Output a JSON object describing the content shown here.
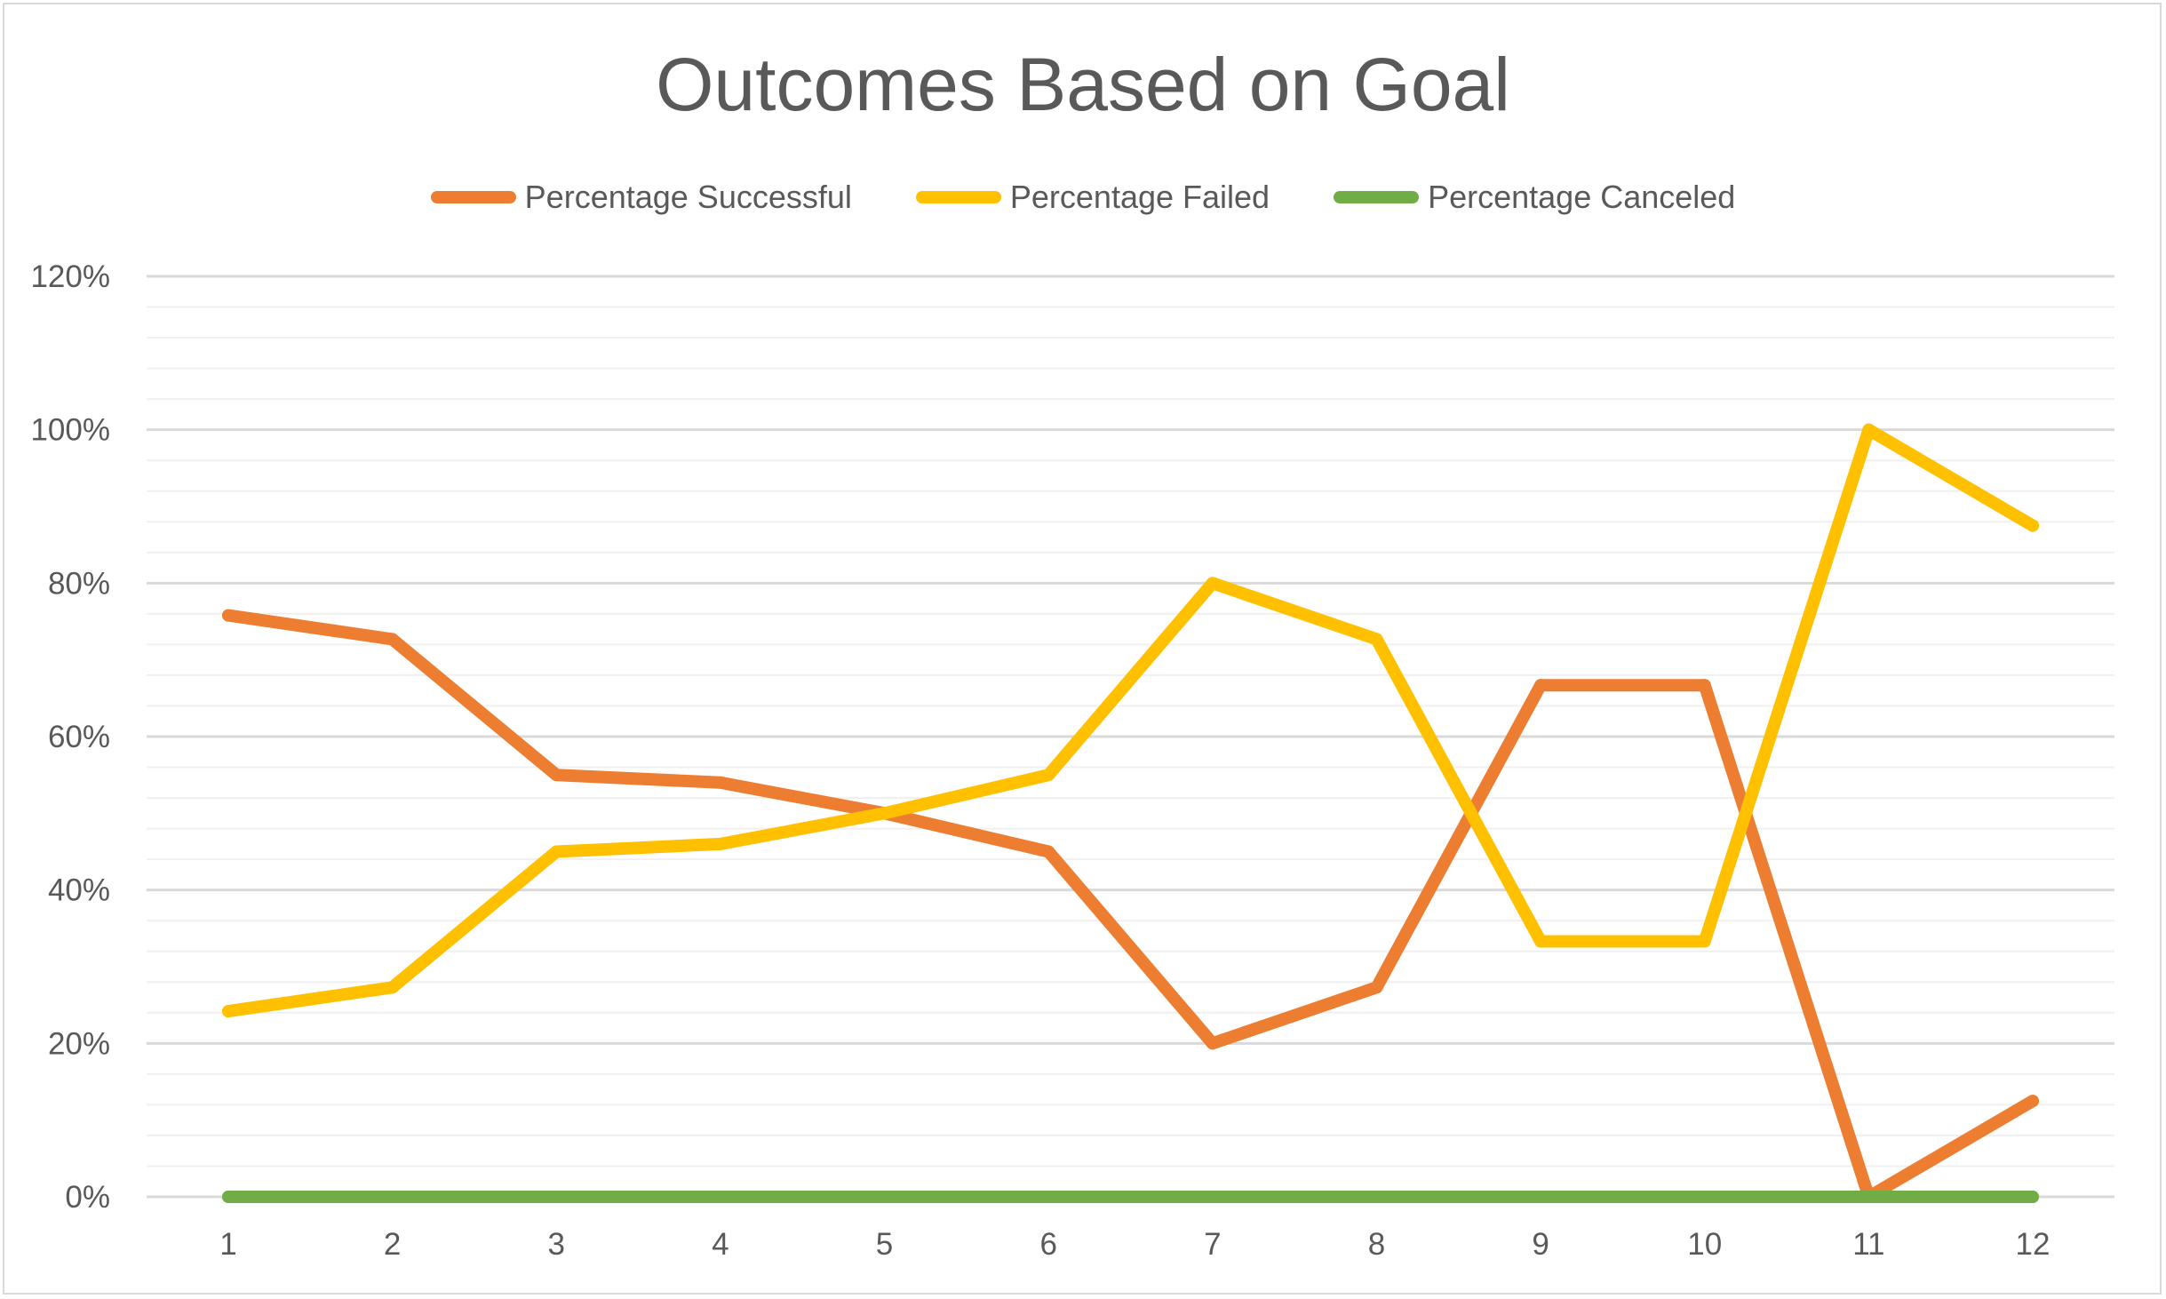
{
  "chart_data": {
    "type": "line",
    "title": "Outcomes Based on Goal",
    "xlabel": "",
    "ylabel": "",
    "categories": [
      "1",
      "2",
      "3",
      "4",
      "5",
      "6",
      "7",
      "8",
      "9",
      "10",
      "11",
      "12"
    ],
    "y_ticks": [
      "0%",
      "20%",
      "40%",
      "60%",
      "80%",
      "100%",
      "120%"
    ],
    "ylim": [
      0,
      1.2
    ],
    "grid": "major and minor horizontal",
    "legend_position": "top",
    "series": [
      {
        "name": "Percentage Successful",
        "color": "#ED7D31",
        "values": [
          0.758,
          0.727,
          0.55,
          0.54,
          0.5,
          0.45,
          0.2,
          0.273,
          0.667,
          0.667,
          0.0,
          0.125
        ]
      },
      {
        "name": "Percentage Failed",
        "color": "#FFC000",
        "values": [
          0.242,
          0.273,
          0.45,
          0.46,
          0.5,
          0.55,
          0.8,
          0.727,
          0.333,
          0.333,
          1.0,
          0.875
        ]
      },
      {
        "name": "Percentage Canceled",
        "color": "#70AD47",
        "values": [
          0,
          0,
          0,
          0,
          0,
          0,
          0,
          0,
          0,
          0,
          0,
          0
        ]
      }
    ]
  }
}
